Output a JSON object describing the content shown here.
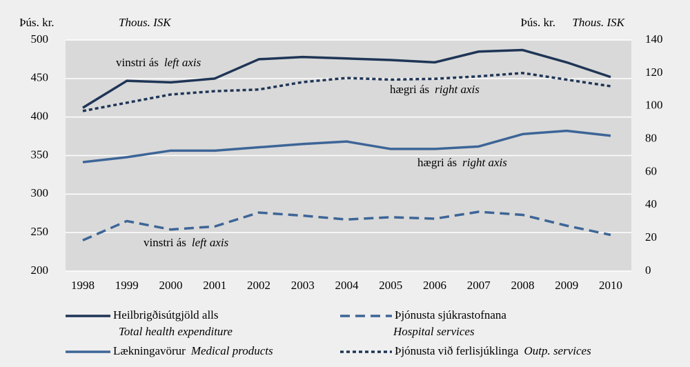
{
  "chart_data": {
    "type": "line",
    "categories": [
      "1998",
      "1999",
      "2000",
      "2001",
      "2002",
      "2003",
      "2004",
      "2005",
      "2006",
      "2007",
      "2008",
      "2009",
      "2010"
    ],
    "ylim": [
      200,
      500
    ],
    "yticks": [
      200,
      250,
      300,
      350,
      400,
      450,
      500
    ],
    "y2lim": [
      0,
      140
    ],
    "y2ticks": [
      0,
      20,
      40,
      60,
      80,
      100,
      120,
      140
    ],
    "y_unit": "Þús. kr.",
    "y_unit_en": "Thous. ISK",
    "y2_unit": "Þús. kr.",
    "y2_unit_en": "Thous. ISK",
    "grid": true,
    "series": [
      {
        "name": "Heilbrigðisútgjöld alls",
        "name_en": "Total health expenditure",
        "color": "#1f3556",
        "dash": "solid",
        "values": [
          412,
          447,
          445,
          450,
          475,
          478,
          476,
          474,
          471,
          485,
          487,
          471,
          452
        ]
      },
      {
        "name": "Þjónusta sjúkrastofnana",
        "name_en": "Hospital services",
        "color": "#3d6597",
        "dash": "dashed",
        "values": [
          240,
          265,
          254,
          258,
          276,
          272,
          267,
          270,
          268,
          277,
          273,
          259,
          247
        ]
      },
      {
        "name": "Lækningavörur",
        "name_en": "Medical products",
        "color": "#3d6597",
        "dash": "solid",
        "axis": "y2",
        "values": [
          66,
          69,
          73,
          73,
          75,
          77,
          78.5,
          74,
          74,
          75.5,
          83,
          85,
          82
        ]
      },
      {
        "name": "Þjónusta við ferlisjúklinga",
        "name_en": "Outp. services",
        "color": "#1f3556",
        "dash": "dotted",
        "axis": "y2",
        "values": [
          97,
          102,
          107,
          109,
          110,
          114.5,
          117,
          116,
          116.5,
          118,
          120,
          116,
          112
        ]
      }
    ],
    "annotations": [
      {
        "text": "vinstri ás",
        "text_en": "left axis"
      },
      {
        "text": "hægri ás",
        "text_en": "right axis"
      },
      {
        "text": "hægri ás",
        "text_en": "right axis"
      },
      {
        "text": "vinstri ás",
        "text_en": "left axis"
      }
    ]
  }
}
